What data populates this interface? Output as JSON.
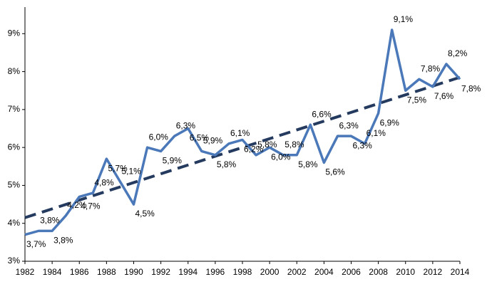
{
  "chart_data": {
    "type": "line",
    "x": [
      1982,
      1983,
      1984,
      1985,
      1986,
      1987,
      1988,
      1989,
      1990,
      1991,
      1992,
      1993,
      1994,
      1995,
      1996,
      1997,
      1998,
      1999,
      2000,
      2001,
      2002,
      2003,
      2004,
      2005,
      2006,
      2007,
      2008,
      2009,
      2010,
      2011,
      2012,
      2013,
      2014
    ],
    "series": [
      {
        "color": "#4a78b8",
        "values": [
          3.7,
          3.8,
          3.8,
          4.2,
          4.7,
          4.8,
          5.7,
          5.1,
          4.5,
          6.0,
          5.9,
          6.3,
          6.5,
          5.9,
          5.8,
          6.1,
          6.2,
          5.8,
          6.0,
          5.8,
          5.8,
          6.6,
          5.6,
          6.3,
          6.3,
          6.1,
          6.9,
          9.1,
          7.5,
          7.8,
          7.6,
          8.2,
          7.8
        ],
        "value_labels": [
          "3,7%",
          "3,8%",
          "3,8%",
          "4,2%",
          "4,7%",
          "4,8%",
          "5,7%",
          "5,1%",
          "4,5%",
          "6,0%",
          "5,9%",
          "6,3%",
          "6,5%",
          "5,9%",
          "5,8%",
          "6,1%",
          "6,2%",
          "5,8%",
          "6,0%",
          "5,8%",
          "5,8%",
          "6,6%",
          "5,6%",
          "6,3%",
          "6,3%",
          "6,1%",
          "6,9%",
          "9,1%",
          "7,5%",
          "7,8%",
          "7,6%",
          "8,2%",
          "7,8%"
        ]
      }
    ],
    "trend": {
      "x": [
        1982,
        2014
      ],
      "values": [
        4.15,
        7.85
      ],
      "color": "#243a5e",
      "dashed": true
    },
    "xlim": [
      1982,
      2014
    ],
    "xticks": [
      1982,
      1984,
      1986,
      1988,
      1990,
      1992,
      1994,
      1996,
      1998,
      2000,
      2002,
      2004,
      2006,
      2008,
      2010,
      2012,
      2014
    ],
    "ylim": [
      3,
      9.7
    ],
    "yticks": [
      {
        "value": 3,
        "label": "3%"
      },
      {
        "value": 4,
        "label": "4%"
      },
      {
        "value": 5,
        "label": "5%"
      },
      {
        "value": 6,
        "label": "6%"
      },
      {
        "value": 7,
        "label": "7%"
      },
      {
        "value": 8,
        "label": "8%"
      },
      {
        "value": 9,
        "label": "9%"
      }
    ],
    "grid": false
  }
}
